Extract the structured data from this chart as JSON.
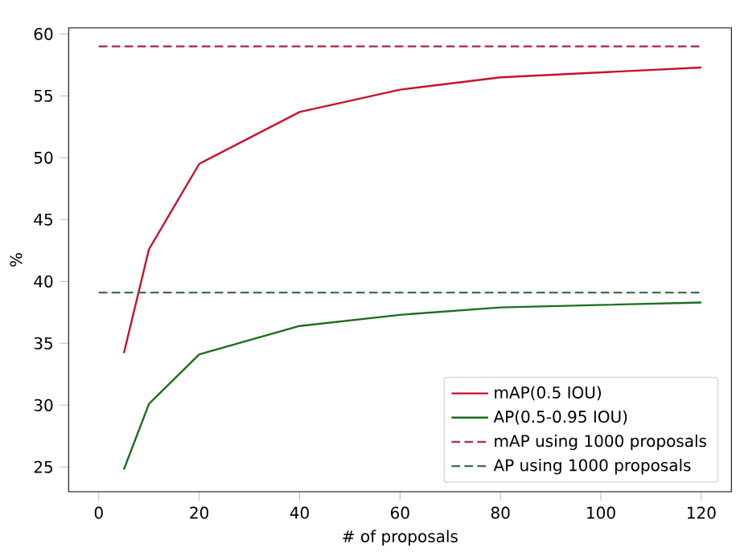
{
  "chart_data": {
    "type": "line",
    "xlabel": "# of proposals",
    "ylabel": "%",
    "xlim": [
      -6,
      126
    ],
    "ylim": [
      23,
      60.5
    ],
    "xticks": [
      0,
      20,
      40,
      60,
      80,
      100,
      120
    ],
    "yticks": [
      25,
      30,
      35,
      40,
      45,
      50,
      55,
      60
    ],
    "legend": "bottom right",
    "grid": false,
    "marker": "none",
    "series": [
      {
        "name": "mAP(0.5 IOU)",
        "color": "#c8102e",
        "x": [
          5,
          10,
          20,
          40,
          60,
          80,
          120
        ],
        "values": [
          34.2,
          42.6,
          49.5,
          53.7,
          55.5,
          56.5,
          57.3
        ],
        "line_style": "solid"
      },
      {
        "name": "AP(0.5-0.95 IOU)",
        "color": "#1e6e1e",
        "x": [
          5,
          10,
          20,
          40,
          60,
          80,
          120
        ],
        "values": [
          24.8,
          30.1,
          34.1,
          36.4,
          37.3,
          37.9,
          38.3
        ],
        "line_style": "solid"
      },
      {
        "name": "mAP using 1000 proposals",
        "color": "#b03a48",
        "x": [
          0,
          120
        ],
        "values": [
          59.0,
          59.0
        ],
        "line_style": "dashed"
      },
      {
        "name": "AP using 1000 proposals",
        "color": "#3f6f4a",
        "x": [
          0,
          120
        ],
        "values": [
          39.1,
          39.1
        ],
        "line_style": "dashed"
      }
    ]
  }
}
